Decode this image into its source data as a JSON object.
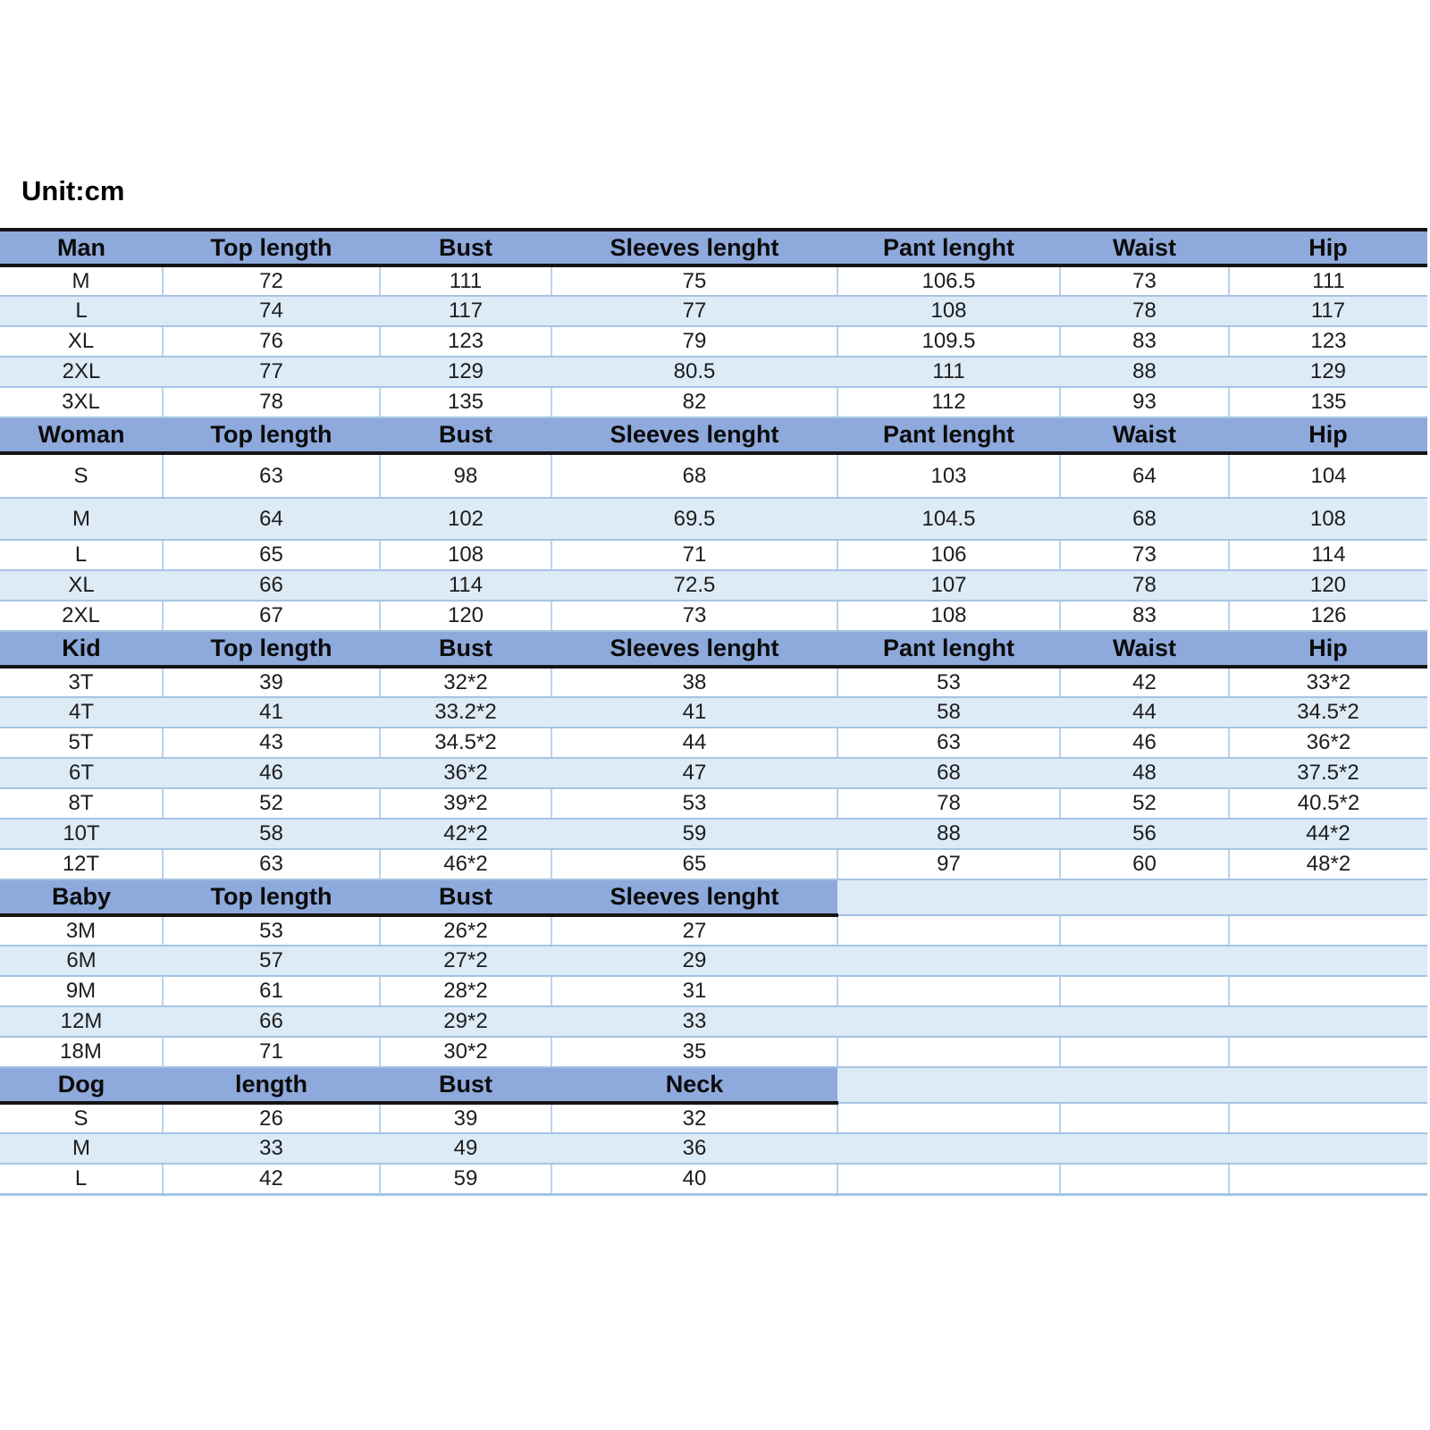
{
  "title": "Unit:cm",
  "colors": {
    "header_bg": "#8ea9db",
    "stripe_bg": "#ddebf7",
    "row_line": "#a5c4e4",
    "grid_line": "#bed3e8",
    "section_border": "#141414",
    "text": "#1d1d1d"
  },
  "sections": [
    {
      "name": "Man",
      "headers": [
        "Man",
        "Top length",
        "Bust",
        "Sleeves lenght",
        "Pant lenght",
        "Waist",
        "Hip"
      ],
      "rows": [
        [
          "M",
          "72",
          "111",
          "75",
          "106.5",
          "73",
          "111"
        ],
        [
          "L",
          "74",
          "117",
          "77",
          "108",
          "78",
          "117"
        ],
        [
          "XL",
          "76",
          "123",
          "79",
          "109.5",
          "83",
          "123"
        ],
        [
          "2XL",
          "77",
          "129",
          "80.5",
          "111",
          "88",
          "129"
        ],
        [
          "3XL",
          "78",
          "135",
          "82",
          "112",
          "93",
          "135"
        ]
      ]
    },
    {
      "name": "Woman",
      "headers": [
        "Woman",
        "Top length",
        "Bust",
        "Sleeves lenght",
        "Pant lenght",
        "Waist",
        "Hip"
      ],
      "rows": [
        [
          "S",
          "63",
          "98",
          "68",
          "103",
          "64",
          "104"
        ],
        [
          "M",
          "64",
          "102",
          "69.5",
          "104.5",
          "68",
          "108"
        ],
        [
          "L",
          "65",
          "108",
          "71",
          "106",
          "73",
          "114"
        ],
        [
          "XL",
          "66",
          "114",
          "72.5",
          "107",
          "78",
          "120"
        ],
        [
          "2XL",
          "67",
          "120",
          "73",
          "108",
          "83",
          "126"
        ]
      ]
    },
    {
      "name": "Kid",
      "headers": [
        "Kid",
        "Top length",
        "Bust",
        "Sleeves lenght",
        "Pant lenght",
        "Waist",
        "Hip"
      ],
      "rows": [
        [
          "3T",
          "39",
          "32*2",
          "38",
          "53",
          "42",
          "33*2"
        ],
        [
          "4T",
          "41",
          "33.2*2",
          "41",
          "58",
          "44",
          "34.5*2"
        ],
        [
          "5T",
          "43",
          "34.5*2",
          "44",
          "63",
          "46",
          "36*2"
        ],
        [
          "6T",
          "46",
          "36*2",
          "47",
          "68",
          "48",
          "37.5*2"
        ],
        [
          "8T",
          "52",
          "39*2",
          "53",
          "78",
          "52",
          "40.5*2"
        ],
        [
          "10T",
          "58",
          "42*2",
          "59",
          "88",
          "56",
          "44*2"
        ],
        [
          "12T",
          "63",
          "46*2",
          "65",
          "97",
          "60",
          "48*2"
        ]
      ]
    },
    {
      "name": "Baby",
      "headers": [
        "Baby",
        "Top length",
        "Bust",
        "Sleeves lenght"
      ],
      "rows": [
        [
          "3M",
          "53",
          "26*2",
          "27",
          "",
          "",
          ""
        ],
        [
          "6M",
          "57",
          "27*2",
          "29",
          "",
          "",
          ""
        ],
        [
          "9M",
          "61",
          "28*2",
          "31",
          "",
          "",
          ""
        ],
        [
          "12M",
          "66",
          "29*2",
          "33",
          "",
          "",
          ""
        ],
        [
          "18M",
          "71",
          "30*2",
          "35",
          "",
          "",
          ""
        ]
      ]
    },
    {
      "name": "Dog",
      "headers": [
        "Dog",
        "length",
        "Bust",
        "Neck"
      ],
      "rows": [
        [
          "S",
          "26",
          "39",
          "32",
          "",
          "",
          ""
        ],
        [
          "M",
          "33",
          "49",
          "36",
          "",
          "",
          ""
        ],
        [
          "L",
          "42",
          "59",
          "40",
          "",
          "",
          ""
        ]
      ]
    }
  ]
}
